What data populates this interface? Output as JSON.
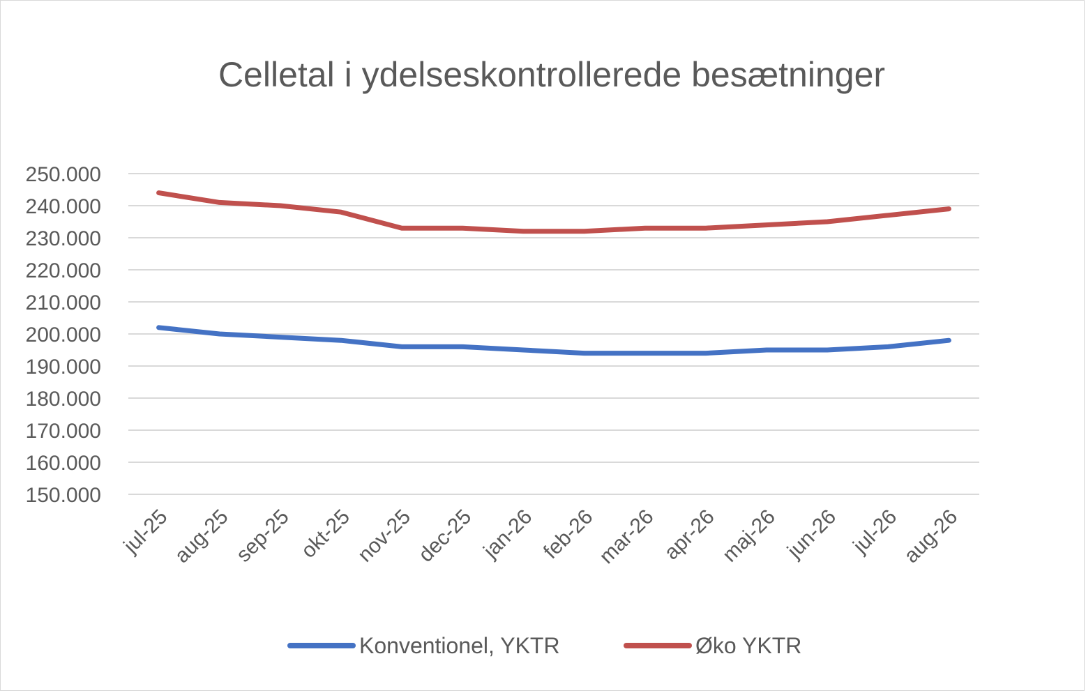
{
  "chart_data": {
    "type": "line",
    "title": "Celletal i ydelseskontrollerede besætninger",
    "categories": [
      "jul-25",
      "aug-25",
      "sep-25",
      "okt-25",
      "nov-25",
      "dec-25",
      "jan-26",
      "feb-26",
      "mar-26",
      "apr-26",
      "maj-26",
      "jun-26",
      "jul-26",
      "aug-26"
    ],
    "y_ticks": [
      "150.000",
      "160.000",
      "170.000",
      "180.000",
      "190.000",
      "200.000",
      "210.000",
      "220.000",
      "230.000",
      "240.000",
      "250.000"
    ],
    "ylim": [
      150000,
      250000
    ],
    "y_step": 10000,
    "grid": true,
    "legend_position": "bottom",
    "series": [
      {
        "name": "Konventionel, YKTR",
        "color": "#4472c4",
        "values": [
          202000,
          200000,
          199000,
          198000,
          196000,
          196000,
          195000,
          194000,
          194000,
          194000,
          195000,
          195000,
          196000,
          198000
        ]
      },
      {
        "name": "Øko YKTR",
        "color": "#c0504d",
        "values": [
          244000,
          241000,
          240000,
          238000,
          233000,
          233000,
          232000,
          232000,
          233000,
          233000,
          234000,
          235000,
          237000,
          239000
        ]
      }
    ]
  }
}
